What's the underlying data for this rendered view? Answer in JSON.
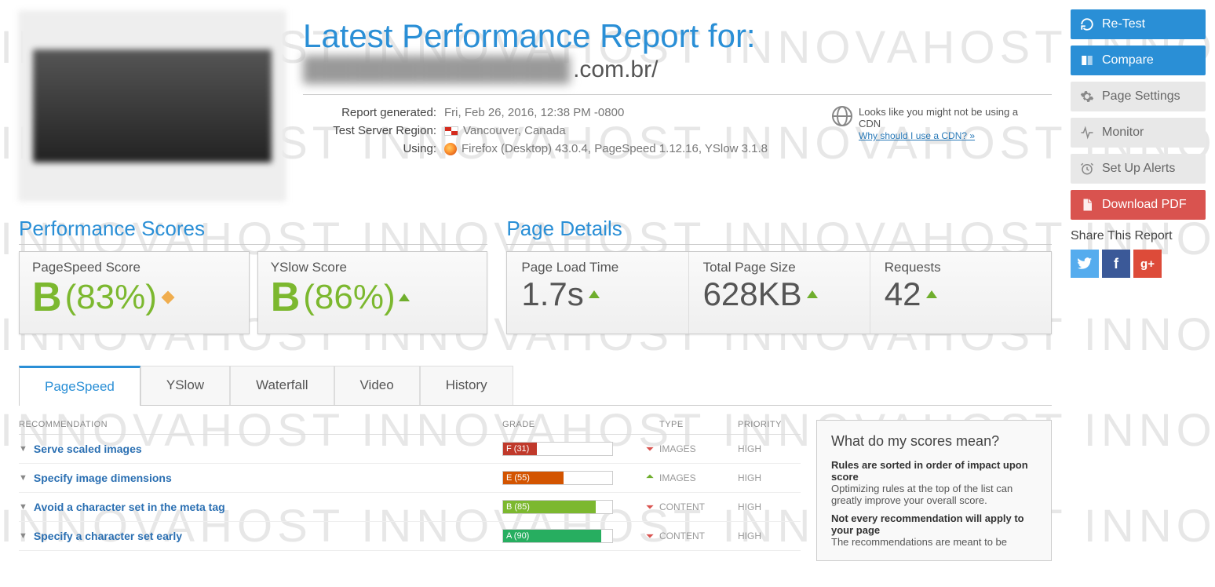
{
  "watermark_text": "INNOVAHOST    INNOVAHOST    INNOVAHOST    INNOVAHOST",
  "header": {
    "title": "Latest Performance Report for:",
    "url_blur": "████████████████",
    "url_suffix": ".com.br/",
    "meta": {
      "report_label": "Report generated:",
      "report_value": "Fri, Feb 26, 2016, 12:38 PM -0800",
      "region_label": "Test Server Region:",
      "region_value": "Vancouver, Canada",
      "using_label": "Using:",
      "using_value": "Firefox (Desktop) 43.0.4, PageSpeed 1.12.16, YSlow 3.1.8"
    },
    "cdn_notice": "Looks like you might not be using a CDN",
    "cdn_link": "Why should I use a CDN? »"
  },
  "scores_section_title": "Performance Scores",
  "details_section_title": "Page Details",
  "scores": {
    "pagespeed": {
      "label": "PageSpeed Score",
      "grade": "B",
      "pct": "(83%)"
    },
    "yslow": {
      "label": "YSlow Score",
      "grade": "B",
      "pct": "(86%)"
    }
  },
  "details": {
    "load": {
      "label": "Page Load Time",
      "value": "1.7s"
    },
    "size": {
      "label": "Total Page Size",
      "value": "628KB"
    },
    "req": {
      "label": "Requests",
      "value": "42"
    }
  },
  "tabs": [
    "PageSpeed",
    "YSlow",
    "Waterfall",
    "Video",
    "History"
  ],
  "rec_headers": {
    "name": "RECOMMENDATION",
    "grade": "GRADE",
    "type": "TYPE",
    "prio": "PRIORITY"
  },
  "recs": [
    {
      "name": "Serve scaled images",
      "grade_label": "F (31)",
      "grade_class": "gf-F",
      "trend": "down",
      "type": "IMAGES",
      "prio": "HIGH"
    },
    {
      "name": "Specify image dimensions",
      "grade_label": "E (55)",
      "grade_class": "gf-E",
      "trend": "up",
      "type": "IMAGES",
      "prio": "HIGH"
    },
    {
      "name": "Avoid a character set in the meta tag",
      "grade_label": "B (85)",
      "grade_class": "gf-B",
      "trend": "down",
      "type": "CONTENT",
      "prio": "HIGH"
    },
    {
      "name": "Specify a character set early",
      "grade_label": "A (90)",
      "grade_class": "gf-A",
      "trend": "down",
      "type": "CONTENT",
      "prio": "HIGH"
    }
  ],
  "info": {
    "title": "What do my scores mean?",
    "b1": "Rules are sorted in order of impact upon score",
    "t1": "Optimizing rules at the top of the list can greatly improve your overall score.",
    "b2": "Not every recommendation will apply to your page",
    "t2": "The recommendations are meant to be"
  },
  "sidebar": {
    "retest": "Re-Test",
    "compare": "Compare",
    "settings": "Page Settings",
    "monitor": "Monitor",
    "alerts": "Set Up Alerts",
    "pdf": "Download PDF",
    "share_title": "Share This Report"
  }
}
